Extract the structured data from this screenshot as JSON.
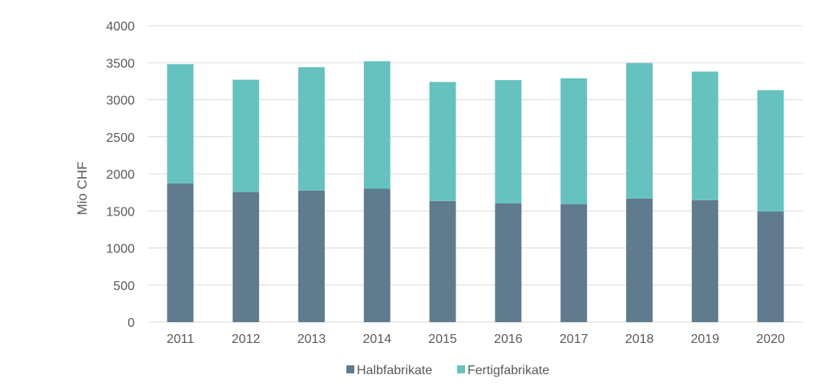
{
  "chart_data": {
    "type": "bar",
    "stacked": true,
    "categories": [
      "2011",
      "2012",
      "2013",
      "2014",
      "2015",
      "2016",
      "2017",
      "2018",
      "2019",
      "2020"
    ],
    "series": [
      {
        "name": "Halbfabrikate",
        "color": "#607b8d",
        "values": [
          1870,
          1755,
          1775,
          1800,
          1635,
          1600,
          1590,
          1665,
          1645,
          1495
        ]
      },
      {
        "name": "Fertigfabrikate",
        "color": "#66c2be",
        "values": [
          1610,
          1515,
          1665,
          1720,
          1605,
          1665,
          1700,
          1830,
          1735,
          1635
        ]
      }
    ],
    "ylabel": "Mio CHF",
    "ylim": [
      0,
      4000
    ],
    "yticks": [
      "0",
      "500",
      "1000",
      "1500",
      "2000",
      "2500",
      "3000",
      "3500",
      "4000"
    ],
    "grid": true,
    "legend_position": "bottom"
  }
}
